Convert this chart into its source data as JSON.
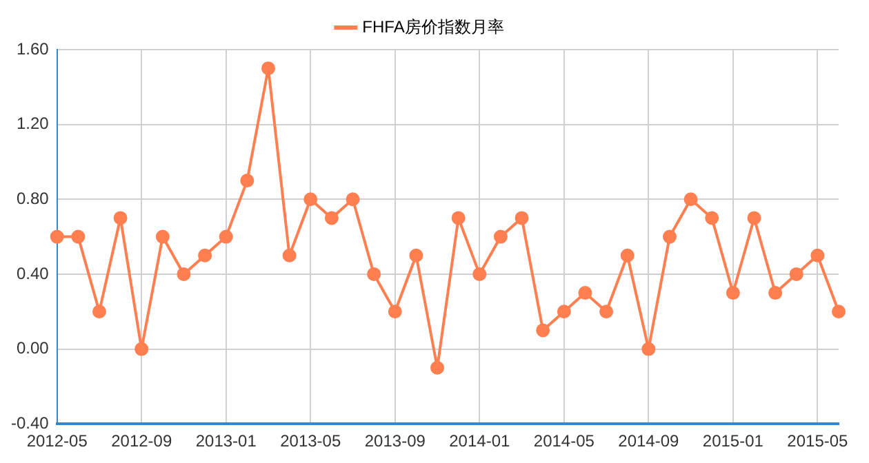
{
  "chart_data": {
    "type": "line",
    "categories": [
      "2012-05",
      null,
      null,
      null,
      "2012-09",
      null,
      null,
      null,
      "2013-01",
      null,
      null,
      null,
      "2013-05",
      null,
      null,
      null,
      "2013-09",
      null,
      null,
      null,
      "2014-01",
      null,
      null,
      null,
      "2014-05",
      null,
      null,
      null,
      "2014-09",
      null,
      null,
      null,
      "2015-01",
      null,
      null,
      null,
      "2015-05",
      null
    ],
    "series": [
      {
        "name": "FHFA房价指数月率",
        "color": "#ff7f50",
        "values": [
          0.6,
          0.6,
          0.2,
          0.7,
          0.0,
          0.6,
          0.4,
          0.5,
          0.6,
          0.9,
          1.5,
          0.5,
          0.8,
          0.7,
          0.8,
          0.4,
          0.2,
          0.5,
          -0.1,
          0.7,
          0.4,
          0.6,
          0.7,
          0.1,
          0.2,
          0.3,
          0.2,
          0.5,
          0.0,
          0.6,
          0.8,
          0.7,
          0.3,
          0.7,
          0.3,
          0.4,
          0.5,
          0.2
        ]
      }
    ],
    "ylim": [
      -0.4,
      1.6
    ],
    "yticks": [
      {
        "value": -0.4,
        "label": "-0.40"
      },
      {
        "value": 0,
        "label": "0.00"
      },
      {
        "value": 0.4,
        "label": "0.40"
      },
      {
        "value": 0.8,
        "label": "0.80"
      },
      {
        "value": 1.2,
        "label": "1.20"
      },
      {
        "value": 1.6,
        "label": "1.60"
      }
    ],
    "grid": true,
    "legend": "top",
    "marker": "circle",
    "line_style": "solid"
  }
}
